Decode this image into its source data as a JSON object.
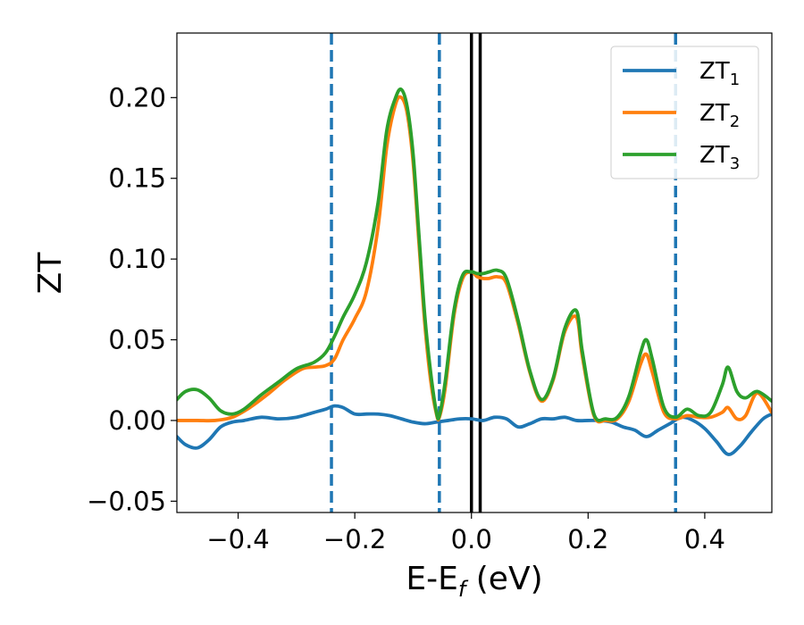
{
  "chart_data": {
    "type": "line",
    "xlabel": "E-E",
    "xlabel_sub": "f",
    "xlabel_unit": " (eV)",
    "ylabel": "ZT",
    "xlim": [
      -0.505,
      0.515
    ],
    "ylim": [
      -0.057,
      0.24
    ],
    "x_ticks": [
      -0.4,
      -0.2,
      0.0,
      0.2,
      0.4
    ],
    "x_tick_labels": [
      "−0.4",
      "−0.2",
      "0.0",
      "0.2",
      "0.4"
    ],
    "y_ticks": [
      -0.05,
      0.0,
      0.05,
      0.1,
      0.15,
      0.2
    ],
    "y_tick_labels": [
      "−0.05",
      "0.00",
      "0.05",
      "0.10",
      "0.15",
      "0.20"
    ],
    "grid": false,
    "legend_position": "top-right",
    "series": [
      {
        "name": "ZT",
        "sub": "1",
        "color": "#1f77b4",
        "x": [
          -0.505,
          -0.49,
          -0.47,
          -0.45,
          -0.43,
          -0.41,
          -0.39,
          -0.36,
          -0.33,
          -0.3,
          -0.27,
          -0.25,
          -0.235,
          -0.22,
          -0.2,
          -0.18,
          -0.16,
          -0.14,
          -0.12,
          -0.1,
          -0.08,
          -0.06,
          -0.04,
          -0.02,
          0.0,
          0.02,
          0.04,
          0.06,
          0.08,
          0.1,
          0.12,
          0.14,
          0.16,
          0.18,
          0.2,
          0.22,
          0.24,
          0.26,
          0.28,
          0.3,
          0.32,
          0.34,
          0.36,
          0.38,
          0.4,
          0.42,
          0.44,
          0.46,
          0.48,
          0.5,
          0.515
        ],
        "y": [
          -0.01,
          -0.015,
          -0.017,
          -0.012,
          -0.004,
          -0.001,
          0.0,
          0.002,
          0.001,
          0.002,
          0.005,
          0.007,
          0.009,
          0.008,
          0.004,
          0.004,
          0.004,
          0.003,
          0.001,
          -0.001,
          -0.002,
          -0.001,
          0.0,
          0.001,
          0.001,
          0.0,
          0.002,
          0.001,
          -0.004,
          -0.002,
          0.001,
          0.001,
          0.002,
          0.0,
          0.0,
          0.0,
          -0.001,
          -0.004,
          -0.006,
          -0.01,
          -0.006,
          -0.002,
          0.002,
          0.0,
          -0.005,
          -0.013,
          -0.021,
          -0.016,
          -0.007,
          0.001,
          0.004
        ]
      },
      {
        "name": "ZT",
        "sub": "2",
        "color": "#ff7f0e",
        "x": [
          -0.505,
          -0.47,
          -0.44,
          -0.41,
          -0.38,
          -0.35,
          -0.32,
          -0.29,
          -0.27,
          -0.25,
          -0.235,
          -0.22,
          -0.2,
          -0.18,
          -0.16,
          -0.145,
          -0.13,
          -0.12,
          -0.11,
          -0.1,
          -0.09,
          -0.08,
          -0.07,
          -0.06,
          -0.055,
          -0.045,
          -0.03,
          -0.015,
          0.0,
          0.01,
          0.02,
          0.03,
          0.045,
          0.06,
          0.08,
          0.1,
          0.12,
          0.14,
          0.16,
          0.18,
          0.19,
          0.21,
          0.23,
          0.25,
          0.27,
          0.29,
          0.3,
          0.31,
          0.33,
          0.35,
          0.37,
          0.39,
          0.41,
          0.43,
          0.44,
          0.455,
          0.47,
          0.49,
          0.515
        ],
        "y": [
          0.0,
          0.0,
          0.0,
          0.002,
          0.008,
          0.016,
          0.025,
          0.032,
          0.033,
          0.034,
          0.038,
          0.05,
          0.063,
          0.08,
          0.12,
          0.17,
          0.196,
          0.2,
          0.19,
          0.16,
          0.11,
          0.06,
          0.025,
          0.004,
          0.002,
          0.02,
          0.065,
          0.088,
          0.092,
          0.089,
          0.088,
          0.088,
          0.089,
          0.085,
          0.06,
          0.03,
          0.012,
          0.025,
          0.055,
          0.064,
          0.04,
          0.003,
          0.0,
          0.001,
          0.012,
          0.035,
          0.041,
          0.03,
          0.005,
          0.001,
          0.003,
          0.002,
          0.002,
          0.005,
          0.008,
          0.001,
          0.003,
          0.017,
          0.005
        ]
      },
      {
        "name": "ZT",
        "sub": "3",
        "color": "#2ca02c",
        "x": [
          -0.505,
          -0.49,
          -0.47,
          -0.45,
          -0.43,
          -0.41,
          -0.39,
          -0.36,
          -0.33,
          -0.3,
          -0.27,
          -0.25,
          -0.235,
          -0.22,
          -0.2,
          -0.18,
          -0.16,
          -0.145,
          -0.13,
          -0.12,
          -0.11,
          -0.1,
          -0.09,
          -0.08,
          -0.07,
          -0.06,
          -0.055,
          -0.045,
          -0.03,
          -0.015,
          0.0,
          0.01,
          0.02,
          0.03,
          0.045,
          0.06,
          0.08,
          0.1,
          0.12,
          0.14,
          0.16,
          0.18,
          0.19,
          0.21,
          0.23,
          0.25,
          0.27,
          0.29,
          0.3,
          0.31,
          0.33,
          0.35,
          0.37,
          0.39,
          0.41,
          0.43,
          0.44,
          0.455,
          0.47,
          0.49,
          0.515
        ],
        "y": [
          0.013,
          0.018,
          0.019,
          0.014,
          0.006,
          0.004,
          0.007,
          0.016,
          0.024,
          0.032,
          0.036,
          0.042,
          0.052,
          0.064,
          0.078,
          0.098,
          0.135,
          0.18,
          0.2,
          0.205,
          0.194,
          0.165,
          0.115,
          0.065,
          0.03,
          0.005,
          0.003,
          0.024,
          0.068,
          0.09,
          0.092,
          0.091,
          0.091,
          0.092,
          0.093,
          0.088,
          0.062,
          0.031,
          0.013,
          0.026,
          0.057,
          0.068,
          0.043,
          0.004,
          0.001,
          0.002,
          0.015,
          0.042,
          0.05,
          0.038,
          0.008,
          0.002,
          0.007,
          0.003,
          0.005,
          0.022,
          0.033,
          0.018,
          0.014,
          0.018,
          0.012
        ]
      }
    ],
    "vlines": [
      {
        "x": -0.24,
        "color": "#1f77b4",
        "style": "dashed"
      },
      {
        "x": -0.055,
        "color": "#1f77b4",
        "style": "dashed"
      },
      {
        "x": 0.35,
        "color": "#1f77b4",
        "style": "dashed"
      },
      {
        "x": 0.0,
        "color": "#000000",
        "style": "solid"
      },
      {
        "x": 0.015,
        "color": "#000000",
        "style": "solid"
      }
    ]
  }
}
